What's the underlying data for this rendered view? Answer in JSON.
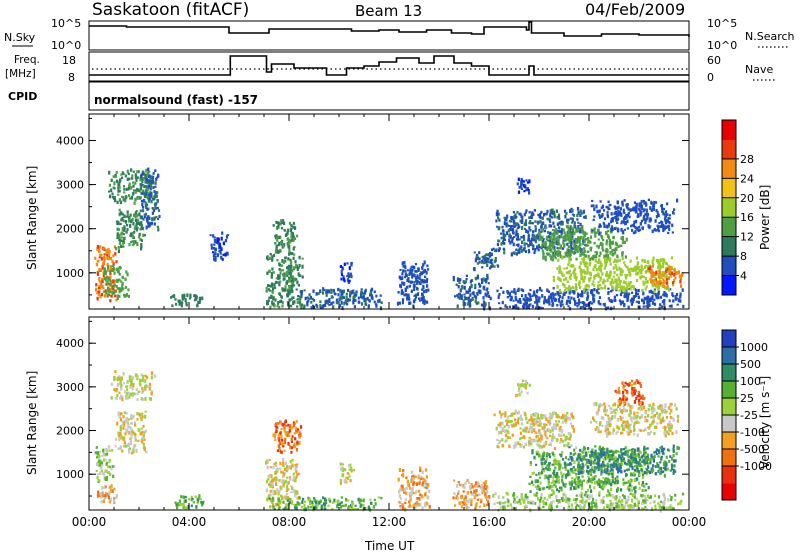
{
  "header": {
    "station": "Saskatoon (fitACF)",
    "beam": "Beam 13",
    "date": "04/Feb/2009"
  },
  "strip": {
    "nsky_label": "N.Sky",
    "nsky_ticks": [
      "10^5",
      "10^0"
    ],
    "nsearch_label": "N.Search",
    "nsearch_ticks": [
      "10^5",
      "10^0"
    ],
    "freq_label_1": "Freq.",
    "freq_label_2": "[MHz]",
    "freq_ticks": [
      "18",
      "8"
    ],
    "nave_label": "Nave",
    "nave_ticks": [
      "60",
      "0"
    ],
    "cpid_label": "CPID",
    "cpid_text": "normalsound (fast) -157"
  },
  "chart_data": [
    {
      "type": "heatmap",
      "name": "power",
      "ylabel": "Slant Range [km]",
      "ylim": [
        180,
        4600
      ],
      "yticks": [
        "1000",
        "2000",
        "3000",
        "4000"
      ],
      "ytick_values": [
        1000,
        2000,
        3000,
        4000
      ],
      "colorbar_label": "Power [dB]",
      "colorbar_ticks": [
        "4",
        "8",
        "12",
        "16",
        "20",
        "24",
        "28"
      ],
      "colorbar_colors": [
        "#0018ff",
        "#1f4fbf",
        "#2e7a5c",
        "#4f9f42",
        "#9ccc2a",
        "#f2c017",
        "#f08a10",
        "#e83a0a",
        "#e60000"
      ],
      "clouds": [
        {
          "t0": 0.2,
          "t1": 1.1,
          "r0": 350,
          "r1": 1700,
          "v": 24
        },
        {
          "t0": 0.5,
          "t1": 1.6,
          "r0": 400,
          "r1": 1200,
          "v": 12
        },
        {
          "t0": 0.7,
          "t1": 2.6,
          "r0": 2600,
          "r1": 3400,
          "v": 10
        },
        {
          "t0": 1.0,
          "t1": 2.2,
          "r0": 1500,
          "r1": 2500,
          "v": 10
        },
        {
          "t0": 2.0,
          "t1": 2.8,
          "r0": 2000,
          "r1": 3400,
          "v": 6
        },
        {
          "t0": 3.2,
          "t1": 4.6,
          "r0": 250,
          "r1": 550,
          "v": 8
        },
        {
          "t0": 4.8,
          "t1": 5.6,
          "r0": 1300,
          "r1": 2000,
          "v": 4
        },
        {
          "t0": 7.0,
          "t1": 8.6,
          "r0": 200,
          "r1": 1500,
          "v": 10
        },
        {
          "t0": 7.3,
          "t1": 8.3,
          "r0": 1400,
          "r1": 2300,
          "v": 10
        },
        {
          "t0": 8.3,
          "t1": 11.8,
          "r0": 200,
          "r1": 700,
          "v": 6
        },
        {
          "t0": 10.0,
          "t1": 10.5,
          "r0": 800,
          "r1": 1300,
          "v": 4
        },
        {
          "t0": 12.3,
          "t1": 13.6,
          "r0": 200,
          "r1": 1300,
          "v": 5
        },
        {
          "t0": 14.5,
          "t1": 16.0,
          "r0": 200,
          "r1": 1000,
          "v": 6
        },
        {
          "t0": 15.3,
          "t1": 16.4,
          "r0": 1100,
          "r1": 1600,
          "v": 6
        },
        {
          "t0": 16.0,
          "t1": 23.9,
          "r0": 200,
          "r1": 700,
          "v": 5
        },
        {
          "t0": 16.1,
          "t1": 20.0,
          "r0": 1400,
          "r1": 2500,
          "v": 6
        },
        {
          "t0": 17.8,
          "t1": 21.5,
          "r0": 1300,
          "r1": 2100,
          "v": 12
        },
        {
          "t0": 18.5,
          "t1": 23.5,
          "r0": 600,
          "r1": 1400,
          "v": 16
        },
        {
          "t0": 22.3,
          "t1": 23.8,
          "r0": 700,
          "r1": 1200,
          "v": 24
        },
        {
          "t0": 20.0,
          "t1": 23.5,
          "r0": 1900,
          "r1": 2700,
          "v": 5
        },
        {
          "t0": 17.1,
          "t1": 17.6,
          "r0": 2800,
          "r1": 3200,
          "v": 4
        }
      ]
    },
    {
      "type": "heatmap",
      "name": "velocity",
      "ylabel": "Slant Range [km]",
      "ylim": [
        180,
        4600
      ],
      "yticks": [
        "1000",
        "2000",
        "3000",
        "4000"
      ],
      "ytick_values": [
        1000,
        2000,
        3000,
        4000
      ],
      "xlabel": "Time UT",
      "xticks": [
        "00:00",
        "04:00",
        "08:00",
        "12:00",
        "16:00",
        "20:00",
        "00:00"
      ],
      "xtick_values": [
        0,
        4,
        8,
        12,
        16,
        20,
        24
      ],
      "xlim": [
        0,
        24
      ],
      "colorbar_label": "Velocity [m s⁻¹]",
      "colorbar_ticks": [
        "1000",
        "500",
        "100",
        "25",
        "-25",
        "-100",
        "-500",
        "-1000"
      ],
      "colorbar_colors": [
        "#2040c0",
        "#2c6fa5",
        "#2f8c64",
        "#55b033",
        "#9bd13d",
        "#c8c8c8",
        "#f2a020",
        "#f07010",
        "#e83010",
        "#e60000"
      ],
      "clouds": [
        {
          "t0": 0.2,
          "t1": 1.0,
          "r0": 800,
          "r1": 1700,
          "v": 4
        },
        {
          "t0": 0.2,
          "t1": 1.1,
          "r0": 350,
          "r1": 800,
          "v": 6
        },
        {
          "t0": 0.8,
          "t1": 2.6,
          "r0": 2700,
          "r1": 3400,
          "v": 5
        },
        {
          "t0": 1.0,
          "t1": 2.3,
          "r0": 1500,
          "r1": 2500,
          "v": 5
        },
        {
          "t0": 3.3,
          "t1": 4.6,
          "r0": 250,
          "r1": 550,
          "v": 3
        },
        {
          "t0": 7.3,
          "t1": 8.5,
          "r0": 1500,
          "r1": 2300,
          "v": 7
        },
        {
          "t0": 7.0,
          "t1": 8.4,
          "r0": 300,
          "r1": 1400,
          "v": 5
        },
        {
          "t0": 7.0,
          "t1": 11.8,
          "r0": 200,
          "r1": 500,
          "v": 3
        },
        {
          "t0": 10.0,
          "t1": 10.6,
          "r0": 800,
          "r1": 1300,
          "v": 5
        },
        {
          "t0": 12.3,
          "t1": 13.6,
          "r0": 200,
          "r1": 1200,
          "v": 6
        },
        {
          "t0": 14.5,
          "t1": 16.0,
          "r0": 200,
          "r1": 900,
          "v": 6
        },
        {
          "t0": 16.1,
          "t1": 19.5,
          "r0": 1600,
          "r1": 2500,
          "v": 5
        },
        {
          "t0": 17.5,
          "t1": 22.5,
          "r0": 600,
          "r1": 1600,
          "v": 3
        },
        {
          "t0": 19.0,
          "t1": 23.8,
          "r0": 1000,
          "r1": 1700,
          "v": 2
        },
        {
          "t0": 16.0,
          "t1": 23.9,
          "r0": 200,
          "r1": 600,
          "v": 4
        },
        {
          "t0": 20.0,
          "t1": 23.6,
          "r0": 1900,
          "r1": 2700,
          "v": 5
        },
        {
          "t0": 21.0,
          "t1": 22.2,
          "r0": 2600,
          "r1": 3200,
          "v": 7
        },
        {
          "t0": 17.0,
          "t1": 17.6,
          "r0": 2800,
          "r1": 3200,
          "v": 5
        }
      ]
    }
  ]
}
